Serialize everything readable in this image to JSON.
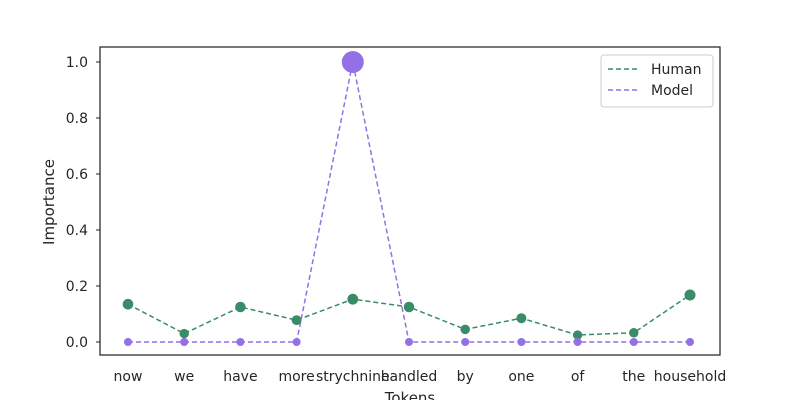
{
  "chart_data": {
    "type": "line",
    "categories": [
      "now",
      "we",
      "have",
      "more",
      "strychnine",
      "handled",
      "by",
      "one",
      "of",
      "the",
      "household"
    ],
    "xlabel": "Tokens",
    "ylabel": "Importance",
    "ylim": [
      -0.05,
      1.05
    ],
    "yticks": [
      "0.0",
      "0.2",
      "0.4",
      "0.6",
      "0.8",
      "1.0"
    ],
    "grid": false,
    "legend": "top-right",
    "series": [
      {
        "name": "Human",
        "color": "#3a8b68",
        "values": [
          0.135,
          0.03,
          0.125,
          0.078,
          0.153,
          0.125,
          0.045,
          0.085,
          0.025,
          0.033,
          0.168
        ]
      },
      {
        "name": "Model",
        "color": "#9370e6",
        "values": [
          0.0,
          0.0,
          0.0,
          0.0,
          1.0,
          0.0,
          0.0,
          0.0,
          0.0,
          0.0,
          0.0
        ]
      }
    ]
  }
}
